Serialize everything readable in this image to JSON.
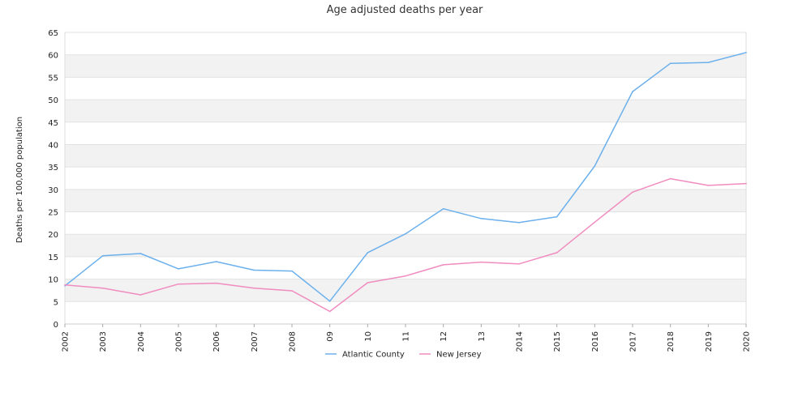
{
  "chart_data": {
    "type": "line",
    "title": "Age adjusted deaths per year",
    "xlabel": "",
    "ylabel": "Deaths per 100,000 population",
    "categories": [
      "2002",
      "2003",
      "2004",
      "2005",
      "2006",
      "2007",
      "2008",
      "09",
      "10",
      "11",
      "12",
      "13",
      "2014",
      "2015",
      "2016",
      "2017",
      "2018",
      "2019",
      "2020"
    ],
    "ylim": [
      0,
      65
    ],
    "yticks": [
      0,
      5,
      10,
      15,
      20,
      25,
      30,
      35,
      40,
      45,
      50,
      55,
      60,
      65
    ],
    "banded_background": true,
    "legend_position": "bottom-center",
    "series": [
      {
        "name": "Atlantic County",
        "color": "#6cb0ec",
        "values": [
          8.5,
          15.2,
          15.7,
          12.3,
          13.9,
          12.0,
          11.8,
          5.1,
          15.9,
          20.1,
          25.7,
          23.5,
          22.6,
          23.9,
          35.2,
          51.8,
          58.1,
          58.3,
          60.5
        ]
      },
      {
        "name": "New Jersey",
        "color": "#f08cbf",
        "values": [
          8.7,
          8.0,
          6.5,
          8.9,
          9.1,
          8.0,
          7.4,
          2.8,
          9.2,
          10.7,
          13.2,
          13.8,
          13.4,
          15.9,
          22.7,
          29.4,
          32.4,
          30.9,
          31.3
        ]
      }
    ]
  }
}
